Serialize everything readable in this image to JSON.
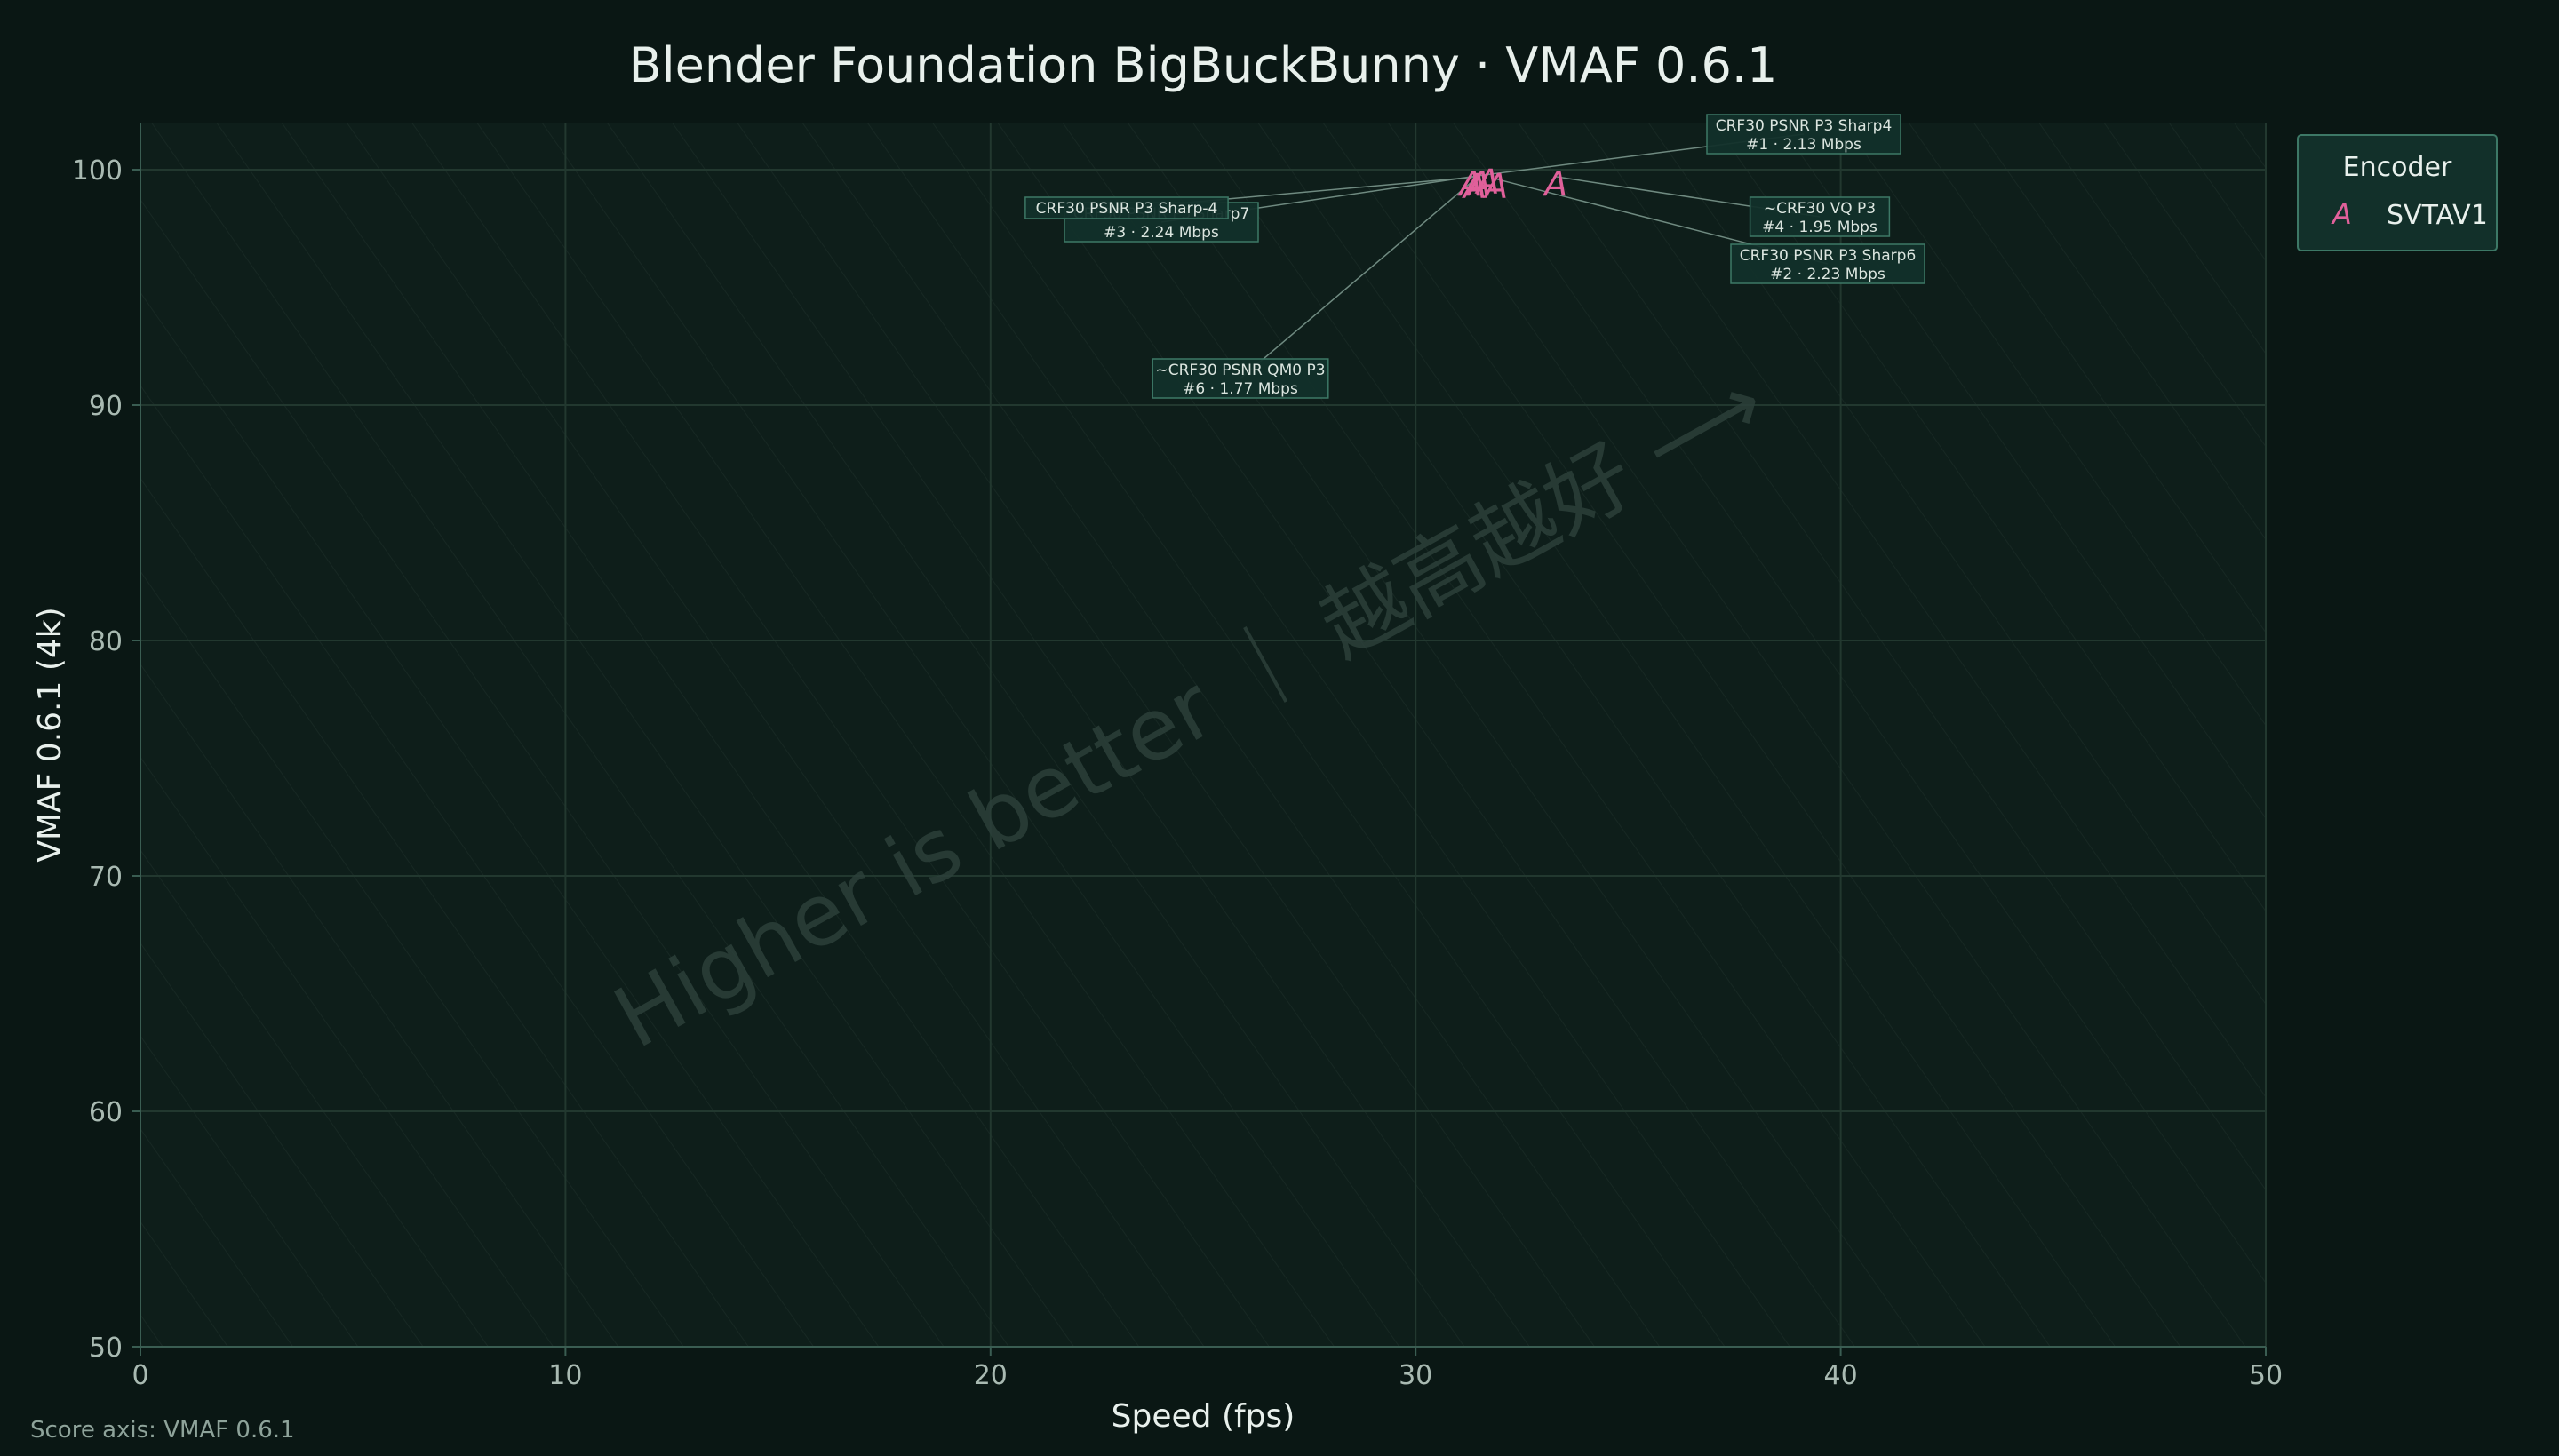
{
  "chart_data": {
    "type": "scatter",
    "title": "Blender Foundation BigBuckBunny · VMAF 0.6.1",
    "xlabel": "Speed (fps)",
    "ylabel": "VMAF 0.6.1 (4k)",
    "xlim": [
      0,
      50
    ],
    "ylim": [
      50,
      102
    ],
    "x_ticks": [
      "0",
      "10",
      "20",
      "30",
      "40",
      "50"
    ],
    "y_ticks": [
      "50",
      "60",
      "70",
      "80",
      "90",
      "100"
    ],
    "grid": true,
    "legend": {
      "title": "Encoder",
      "placement": "right-top",
      "entries": [
        "SVTAV1"
      ]
    },
    "watermark": "Higher is better ｜ 越高越好 ⟶",
    "footnote": "Score axis: VMAF 0.6.1",
    "series": [
      {
        "name": "SVTAV1",
        "marker": "A",
        "color": "#e0609a",
        "points": [
          {
            "x": 31.3,
            "y": 99.4,
            "line1": "CRF30 PSNR P3 Sharp4",
            "line2": "#1 · 2.13 Mbps"
          },
          {
            "x": 31.9,
            "y": 99.3,
            "line1": "CRF30 PSNR P3 Sharp6",
            "line2": "#2 · 2.23 Mbps"
          },
          {
            "x": 31.7,
            "y": 99.5,
            "line1": "CRF30 PSNR P3 Sharp7",
            "line2": "#3 · 2.24 Mbps"
          },
          {
            "x": 33.3,
            "y": 99.4,
            "line1": "~CRF30 VQ P3",
            "line2": "#4 · 1.95 Mbps"
          },
          {
            "x": 31.5,
            "y": 99.4,
            "line1": "CRF30 PSNR P3 Sharp-4",
            "line2": ""
          },
          {
            "x": 31.4,
            "y": 99.3,
            "line1": "~CRF30 PSNR QM0 P3",
            "line2": "#6 · 1.77 Mbps"
          }
        ]
      }
    ]
  }
}
